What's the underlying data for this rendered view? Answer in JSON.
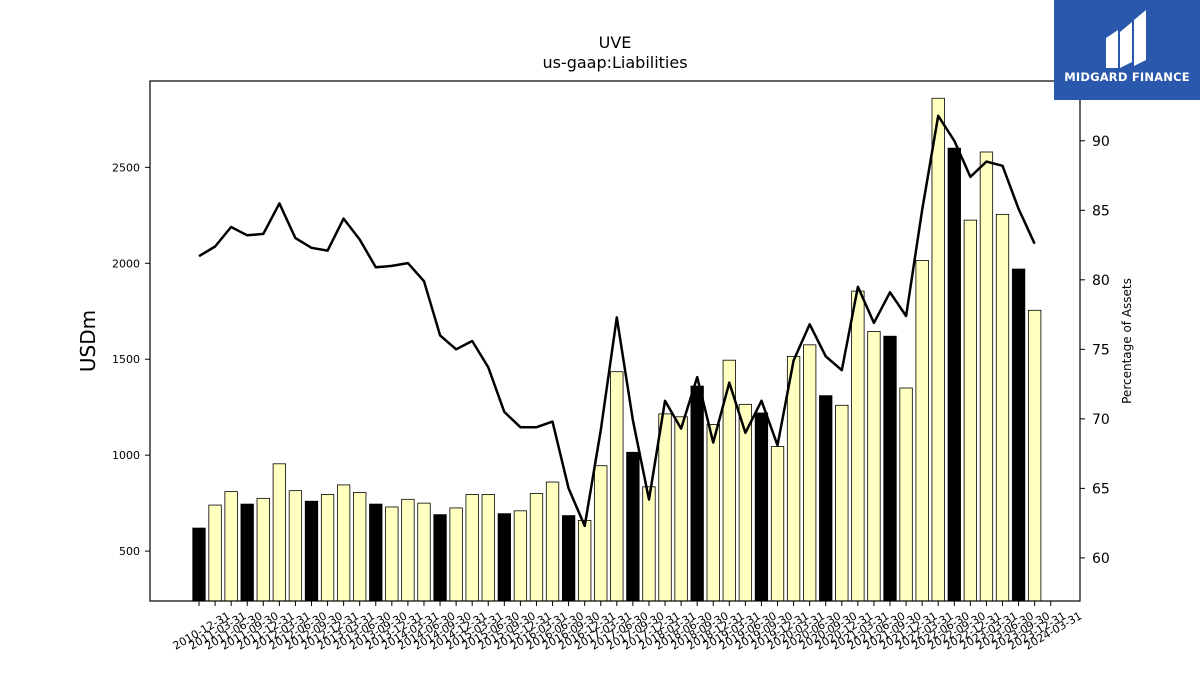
{
  "logo": {
    "text": "MIDGARD FINANCE"
  },
  "colors": {
    "highlight_bar": "#000000",
    "normal_bar": "#ffffc0",
    "line": "#000000"
  },
  "chart_data": {
    "type": "bar",
    "title": "UVE",
    "subtitle": "us-gaap:Liabilities",
    "ylabel": "USDm",
    "y2label": "Percentage of Assets",
    "ylim": [
      240,
      2950
    ],
    "y2lim": [
      56.9,
      94.3
    ],
    "yticks": [
      500,
      1000,
      1500,
      2000,
      2500
    ],
    "y2ticks": [
      60,
      65,
      70,
      75,
      80,
      85,
      90
    ],
    "categories": [
      "2010-12-31",
      "2011-03-31",
      "2011-06-30",
      "2011-09-30",
      "2011-12-31",
      "2012-03-31",
      "2012-06-30",
      "2012-09-30",
      "2012-12-31",
      "2013-03-31",
      "2013-06-30",
      "2013-09-30",
      "2013-12-31",
      "2014-03-31",
      "2014-06-30",
      "2014-09-30",
      "2014-12-31",
      "2015-03-31",
      "2015-06-30",
      "2015-09-30",
      "2015-12-31",
      "2016-03-31",
      "2016-06-30",
      "2016-09-30",
      "2016-12-31",
      "2017-03-31",
      "2017-06-30",
      "2017-09-30",
      "2017-12-31",
      "2018-03-31",
      "2018-06-30",
      "2018-09-30",
      "2018-12-31",
      "2019-03-31",
      "2019-06-30",
      "2019-09-30",
      "2019-12-31",
      "2020-03-31",
      "2020-06-30",
      "2020-09-30",
      "2020-12-31",
      "2021-03-31",
      "2021-06-30",
      "2021-09-30",
      "2021-12-31",
      "2022-03-31",
      "2022-06-30",
      "2022-09-30",
      "2022-12-31",
      "2023-03-31",
      "2023-06-30",
      "2023-09-30",
      "2023-12-31",
      "2024-03-31"
    ],
    "series": [
      {
        "type": "bar",
        "values": [
          620,
          740,
          810,
          745,
          775,
          955,
          815,
          760,
          795,
          845,
          805,
          745,
          730,
          770,
          750,
          690,
          725,
          795,
          795,
          695,
          710,
          800,
          860,
          685,
          660,
          945,
          1435,
          1015,
          835,
          1215,
          1200,
          1360,
          1160,
          1495,
          1265,
          1220,
          1045,
          1515,
          1575,
          1310,
          1260,
          1855,
          1645,
          1620,
          1350,
          2015,
          2860,
          2600,
          2225,
          2580,
          2255,
          1970,
          1755,
          null
        ],
        "highlight": [
          true,
          false,
          false,
          true,
          false,
          false,
          false,
          true,
          false,
          false,
          false,
          true,
          false,
          false,
          false,
          true,
          false,
          false,
          false,
          true,
          false,
          false,
          false,
          true,
          false,
          false,
          false,
          true,
          false,
          false,
          false,
          true,
          false,
          false,
          false,
          true,
          false,
          false,
          false,
          true,
          false,
          false,
          false,
          true,
          false,
          false,
          false,
          true,
          false,
          false,
          false,
          true,
          false,
          false
        ]
      },
      {
        "type": "line",
        "axis": "right",
        "values": [
          81.7,
          82.4,
          83.8,
          83.2,
          83.3,
          85.5,
          83.0,
          82.3,
          82.1,
          84.4,
          82.9,
          80.9,
          81.0,
          81.2,
          79.9,
          76.0,
          75.0,
          75.6,
          73.7,
          70.5,
          69.4,
          69.4,
          69.8,
          65.0,
          62.3,
          69.2,
          77.3,
          69.9,
          64.2,
          71.3,
          69.3,
          73.0,
          68.3,
          72.6,
          69.0,
          71.3,
          68.1,
          74.2,
          76.8,
          74.5,
          73.5,
          79.5,
          76.9,
          79.1,
          77.4,
          85.0,
          91.8,
          90.0,
          87.4,
          88.5,
          88.2,
          85.1,
          82.6,
          null
        ]
      }
    ]
  }
}
